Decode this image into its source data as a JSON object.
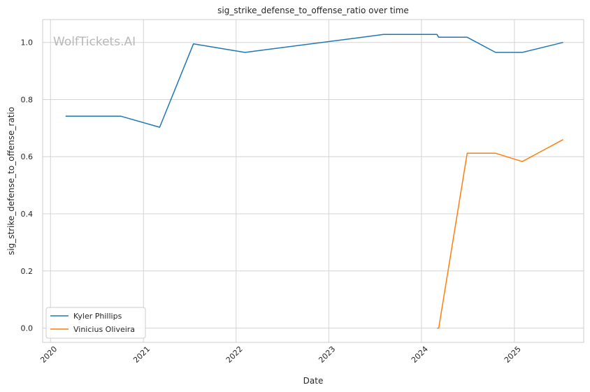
{
  "chart_data": {
    "type": "line",
    "title": "sig_strike_defense_to_offense_ratio over time",
    "xlabel": "Date",
    "ylabel": "sig_strike_defense_to_offense_ratio",
    "watermark": "WolfTickets.AI",
    "x_ticks": [
      "2020",
      "2021",
      "2022",
      "2023",
      "2024",
      "2025"
    ],
    "y_ticks": [
      "0.0",
      "0.2",
      "0.4",
      "0.6",
      "0.8",
      "1.0"
    ],
    "xlim": [
      "2019-12-01",
      "2025-10-01"
    ],
    "ylim": [
      -0.05,
      1.08
    ],
    "grid": true,
    "legend_position": "lower-left",
    "series": [
      {
        "name": "Kyler Phillips",
        "color": "#1f77b4",
        "points": [
          [
            "2020-02-29",
            0.742
          ],
          [
            "2020-10-03",
            0.742
          ],
          [
            "2021-03-06",
            0.703
          ],
          [
            "2021-07-17",
            0.995
          ],
          [
            "2022-02-05",
            0.965
          ],
          [
            "2023-08-05",
            1.028
          ],
          [
            "2024-03-02",
            1.028
          ],
          [
            "2024-03-09",
            1.018
          ],
          [
            "2024-06-29",
            1.018
          ],
          [
            "2024-10-19",
            0.965
          ],
          [
            "2025-02-01",
            0.965
          ],
          [
            "2025-07-12",
            1.0
          ]
        ]
      },
      {
        "name": "Vinicius Oliveira",
        "color": "#ff7f0e",
        "points": [
          [
            "2024-03-02",
            0.0
          ],
          [
            "2024-03-09",
            0.0
          ],
          [
            "2024-06-29",
            0.612
          ],
          [
            "2024-10-19",
            0.612
          ],
          [
            "2025-02-01",
            0.583
          ],
          [
            "2025-07-12",
            0.66
          ]
        ]
      }
    ]
  }
}
